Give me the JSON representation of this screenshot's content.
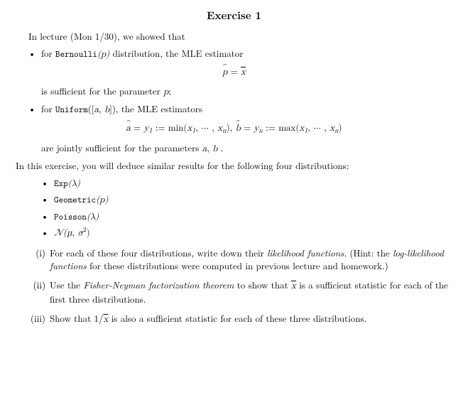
{
  "title": "Exercise 1",
  "intro": "In lecture (Mon 1/30), we showed that",
  "b1_pre": "for ",
  "b1_tt": "Bernoulli",
  "b1_arg": "(p)",
  "b1_post": " distribution, the MLE estimator",
  "eq1_lhs_var": "p",
  "eq1_eq": " = ",
  "eq1_rhs_var": "x",
  "sub1_pre": "is sufficient for the parameter ",
  "sub1_var": "p",
  "sub1_post": ";",
  "b2_pre": "for ",
  "b2_tt": "Uniform",
  "b2_arg_open": "([",
  "b2_arg_a": "a",
  "b2_arg_comma": ", ",
  "b2_arg_b": "b",
  "b2_arg_close": "])",
  "b2_post": ", the MLE estimators",
  "eq2": "â = y₁ := min(x₁, ··· , xₙ),  b̂ = yₙ := max(x₁, ··· , xₙ)",
  "eq2_a": "a",
  "eq2_y1": "y",
  "eq2_sub1": "1",
  "eq2_min": " := min(",
  "eq2_x1": "x",
  "eq2_c1": ", ··· , ",
  "eq2_xn": "x",
  "eq2_subn": "n",
  "eq2_close1": "), ",
  "eq2_b": "b",
  "eq2_yn": "y",
  "eq2_max": " := max(",
  "eq2_close2": ")",
  "sub2_pre": "are jointly sufficient for the parameters ",
  "sub2_a": "a",
  "sub2_comma": ", ",
  "sub2_b": "b",
  "sub2_post": " .",
  "mid": "In this exercise, you will deduce similar results for the following four distributions:",
  "d1_tt": "Exp",
  "d1_arg": "(λ)",
  "d2_tt": "Geometric",
  "d2_arg": "(p)",
  "d3_tt": "Poisson",
  "d3_arg": "(λ)",
  "d4_pre": "𝒩(",
  "d4_mu": "µ",
  "d4_comma": ", ",
  "d4_sigma": "σ",
  "d4_sup": "2",
  "d4_close": ")",
  "r1_num": "(i)",
  "r1_a": "For each of these four distributions, write down their ",
  "r1_em1": "likelihood functions",
  "r1_b": ". (Hint: the ",
  "r1_em2": "log-likelihood functions",
  "r1_c": " for these distributions were computed in previous lecture and homework.)",
  "r2_num": "(ii)",
  "r2_a": "Use the ",
  "r2_em": "Fisher-Neyman factorization theorem",
  "r2_b": " to show that ",
  "r2_var": "x",
  "r2_c": " is a sufficient statistic for each of the first three distributions.",
  "r3_num": "(iii)",
  "r3_a": "Show that 1/",
  "r3_var": "x",
  "r3_b": " is also a sufficient statistic for each of these three distributions."
}
